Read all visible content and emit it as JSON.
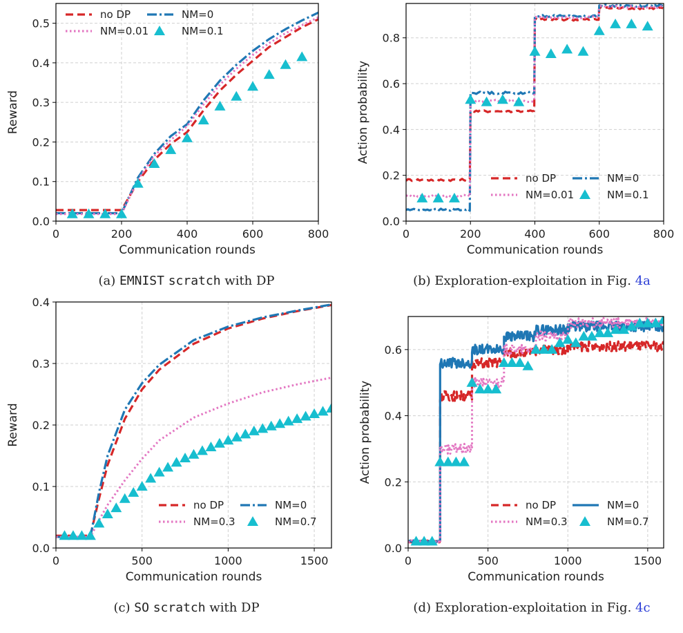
{
  "chart_data": [
    {
      "id": "a",
      "type": "line",
      "xlabel": "Communication rounds",
      "ylabel": "Reward",
      "xlim": [
        0,
        800
      ],
      "ylim": [
        0,
        0.55
      ],
      "xticks": [
        0,
        200,
        400,
        600,
        800
      ],
      "yticks": [
        0.0,
        0.1,
        0.2,
        0.3,
        0.4,
        0.5
      ],
      "grid": true,
      "legend_position": "upper-left",
      "caption": {
        "prefix": "(a) ",
        "code1": "EMNIST",
        "sep": " ",
        "code2": "scratch",
        "rest": " with DP"
      },
      "series": [
        {
          "name": "no DP",
          "style": "dashed",
          "color": "#d62728",
          "x": [
            0,
            200,
            250,
            300,
            350,
            400,
            450,
            500,
            550,
            600,
            650,
            700,
            750,
            800
          ],
          "y": [
            0.028,
            0.028,
            0.1,
            0.155,
            0.195,
            0.225,
            0.28,
            0.33,
            0.37,
            0.405,
            0.44,
            0.465,
            0.49,
            0.51
          ]
        },
        {
          "name": "NM=0",
          "style": "dashdot",
          "color": "#1f77b4",
          "x": [
            0,
            200,
            250,
            300,
            350,
            400,
            450,
            500,
            550,
            600,
            650,
            700,
            750,
            800
          ],
          "y": [
            0.02,
            0.02,
            0.11,
            0.17,
            0.215,
            0.245,
            0.305,
            0.355,
            0.395,
            0.43,
            0.46,
            0.485,
            0.507,
            0.527
          ]
        },
        {
          "name": "NM=0.01",
          "style": "dotted",
          "color": "#e377c2",
          "x": [
            0,
            200,
            250,
            300,
            350,
            400,
            450,
            500,
            550,
            600,
            650,
            700,
            750,
            800
          ],
          "y": [
            0.018,
            0.018,
            0.105,
            0.165,
            0.205,
            0.24,
            0.295,
            0.345,
            0.385,
            0.42,
            0.45,
            0.475,
            0.495,
            0.515
          ]
        },
        {
          "name": "NM=0.1",
          "style": "marker",
          "color": "#17becf",
          "x": [
            50,
            100,
            150,
            200,
            250,
            300,
            350,
            400,
            450,
            500,
            550,
            600,
            650,
            700,
            750
          ],
          "y": [
            0.018,
            0.018,
            0.018,
            0.018,
            0.095,
            0.145,
            0.18,
            0.21,
            0.255,
            0.29,
            0.315,
            0.34,
            0.37,
            0.395,
            0.415
          ]
        }
      ]
    },
    {
      "id": "b",
      "type": "line",
      "xlabel": "Communication rounds",
      "ylabel": "Action probability",
      "xlim": [
        0,
        800
      ],
      "ylim": [
        0,
        0.95
      ],
      "xticks": [
        0,
        200,
        400,
        600,
        800
      ],
      "yticks": [
        0.0,
        0.2,
        0.4,
        0.6,
        0.8
      ],
      "grid": true,
      "legend_position": "lower-right",
      "caption": {
        "prefix": "(b) Exploration-exploitation in Fig. ",
        "ref": "4a"
      },
      "series": [
        {
          "name": "no DP",
          "style": "dashed",
          "color": "#d62728",
          "levels": [
            0.18,
            0.48,
            0.88,
            0.93
          ]
        },
        {
          "name": "NM=0",
          "style": "dashdot",
          "color": "#1f77b4",
          "levels": [
            0.05,
            0.56,
            0.895,
            0.94
          ]
        },
        {
          "name": "NM=0.01",
          "style": "dotted",
          "color": "#e377c2",
          "levels": [
            0.11,
            0.525,
            0.89,
            0.935
          ]
        },
        {
          "name": "NM=0.1",
          "style": "marker",
          "color": "#17becf",
          "x": [
            50,
            100,
            150,
            200,
            250,
            300,
            350,
            400,
            450,
            500,
            550,
            600,
            650,
            700,
            750
          ],
          "y": [
            0.1,
            0.1,
            0.1,
            0.53,
            0.52,
            0.53,
            0.52,
            0.74,
            0.73,
            0.75,
            0.74,
            0.83,
            0.86,
            0.86,
            0.85
          ]
        }
      ]
    },
    {
      "id": "c",
      "type": "line",
      "xlabel": "Communication rounds",
      "ylabel": "Reward",
      "xlim": [
        0,
        1600
      ],
      "ylim": [
        0,
        0.4
      ],
      "xticks": [
        0,
        500,
        1000,
        1500
      ],
      "yticks": [
        0.0,
        0.1,
        0.2,
        0.3,
        0.4
      ],
      "grid": true,
      "legend_position": "lower-right",
      "caption": {
        "prefix": "(c) ",
        "code1": "SO",
        "sep": " ",
        "code2": "scratch",
        "rest": " with DP"
      },
      "series": [
        {
          "name": "no DP",
          "style": "dashed",
          "color": "#d62728",
          "x": [
            0,
            200,
            250,
            300,
            400,
            500,
            600,
            800,
            1000,
            1200,
            1400,
            1600
          ],
          "y": [
            0.02,
            0.02,
            0.08,
            0.135,
            0.21,
            0.258,
            0.29,
            0.332,
            0.357,
            0.373,
            0.385,
            0.395
          ]
        },
        {
          "name": "NM=0",
          "style": "dashdot",
          "color": "#1f77b4",
          "x": [
            0,
            200,
            250,
            300,
            400,
            500,
            600,
            800,
            1000,
            1200,
            1400,
            1600
          ],
          "y": [
            0.018,
            0.018,
            0.09,
            0.15,
            0.225,
            0.268,
            0.298,
            0.338,
            0.36,
            0.375,
            0.386,
            0.396
          ]
        },
        {
          "name": "NM=0.3",
          "style": "dotted",
          "color": "#e377c2",
          "x": [
            0,
            200,
            250,
            300,
            400,
            500,
            600,
            800,
            1000,
            1200,
            1400,
            1600
          ],
          "y": [
            0.018,
            0.018,
            0.045,
            0.07,
            0.11,
            0.145,
            0.175,
            0.212,
            0.235,
            0.253,
            0.266,
            0.277
          ]
        },
        {
          "name": "NM=0.7",
          "style": "marker",
          "color": "#17becf",
          "x": [
            50,
            100,
            150,
            200,
            250,
            300,
            350,
            400,
            450,
            500,
            550,
            600,
            650,
            700,
            750,
            800,
            850,
            900,
            950,
            1000,
            1050,
            1100,
            1150,
            1200,
            1250,
            1300,
            1350,
            1400,
            1450,
            1500,
            1550,
            1600
          ],
          "y": [
            0.02,
            0.02,
            0.02,
            0.02,
            0.04,
            0.055,
            0.065,
            0.08,
            0.09,
            0.1,
            0.113,
            0.123,
            0.131,
            0.139,
            0.146,
            0.152,
            0.158,
            0.164,
            0.17,
            0.175,
            0.18,
            0.185,
            0.19,
            0.194,
            0.198,
            0.202,
            0.206,
            0.21,
            0.214,
            0.218,
            0.222,
            0.227
          ]
        }
      ]
    },
    {
      "id": "d",
      "type": "line",
      "xlabel": "Communication rounds",
      "ylabel": "Action probability",
      "xlim": [
        0,
        1600
      ],
      "ylim": [
        0,
        0.7
      ],
      "xticks": [
        0,
        500,
        1000,
        1500
      ],
      "yticks": [
        0.0,
        0.2,
        0.4,
        0.6
      ],
      "grid": true,
      "legend_position": "lower-right",
      "caption": {
        "prefix": "(d) Exploration-exploitation in Fig. ",
        "ref": "4c"
      },
      "series": [
        {
          "name": "no DP",
          "style": "dashed",
          "color": "#d62728",
          "levels": [
            0.02,
            0.46,
            0.56,
            0.59,
            0.6,
            0.61
          ]
        },
        {
          "name": "NM=0",
          "style": "solid",
          "color": "#1f77b4",
          "levels": [
            0.02,
            0.56,
            0.6,
            0.64,
            0.66,
            0.67
          ]
        },
        {
          "name": "NM=0.3",
          "style": "dotted",
          "color": "#e377c2",
          "levels": [
            0.02,
            0.3,
            0.5,
            0.6,
            0.64,
            0.68
          ]
        },
        {
          "name": "NM=0.7",
          "style": "marker",
          "color": "#17becf",
          "x": [
            50,
            100,
            150,
            200,
            250,
            300,
            350,
            400,
            450,
            500,
            550,
            600,
            650,
            700,
            750,
            800,
            850,
            900,
            950,
            1000,
            1050,
            1100,
            1150,
            1200,
            1250,
            1300,
            1350,
            1400,
            1450,
            1500,
            1550,
            1600
          ],
          "y": [
            0.02,
            0.02,
            0.02,
            0.26,
            0.26,
            0.26,
            0.26,
            0.5,
            0.48,
            0.48,
            0.48,
            0.56,
            0.56,
            0.56,
            0.55,
            0.6,
            0.6,
            0.6,
            0.62,
            0.63,
            0.62,
            0.64,
            0.64,
            0.65,
            0.65,
            0.66,
            0.66,
            0.67,
            0.68,
            0.68,
            0.68,
            0.69
          ]
        }
      ]
    }
  ]
}
